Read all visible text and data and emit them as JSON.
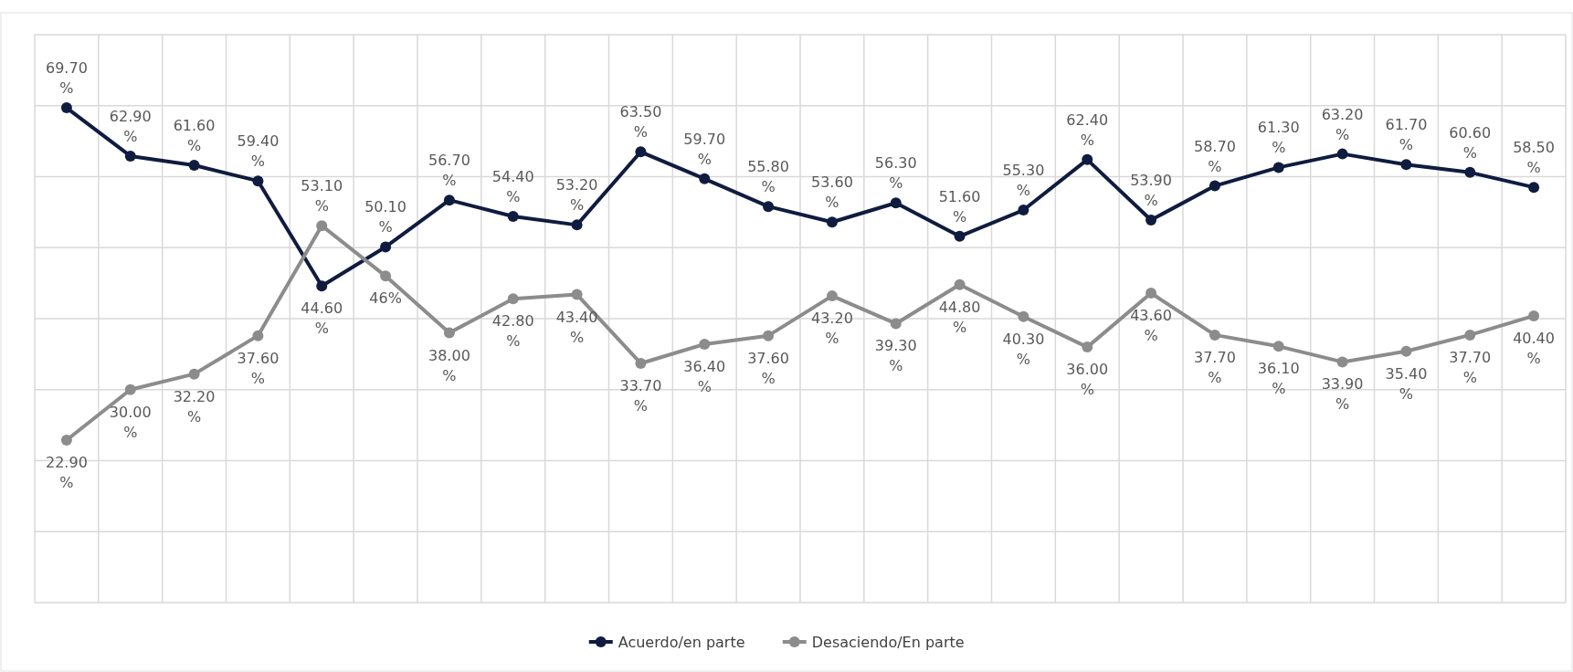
{
  "chart_data": {
    "type": "line",
    "categories": [
      null,
      null,
      null,
      null,
      null,
      null,
      null,
      null,
      null,
      null,
      null,
      null,
      null,
      null,
      null,
      null,
      null,
      null,
      null,
      null,
      null,
      null,
      null,
      null
    ],
    "series": [
      {
        "name": "Acuerdo/en parte",
        "color": "#0f1c3f",
        "values": [
          69.7,
          62.9,
          61.6,
          59.4,
          44.6,
          50.1,
          56.7,
          54.4,
          53.2,
          63.5,
          59.7,
          55.8,
          53.6,
          56.3,
          51.6,
          55.3,
          62.4,
          53.9,
          58.7,
          61.3,
          63.2,
          61.7,
          60.6,
          58.5
        ],
        "value_labels": [
          "69.70 %",
          "62.90 %",
          "61.60 %",
          "59.40 %",
          "44.60 %",
          "50.10 %",
          "56.70 %",
          "54.40 %",
          "53.20 %",
          "63.50 %",
          "59.70 %",
          "55.80 %",
          "53.60 %",
          "56.30 %",
          "51.60 %",
          "55.30 %",
          "62.40 %",
          "53.90 %",
          "58.70 %",
          "61.30 %",
          "63.20 %",
          "61.70 %",
          "60.60 %",
          "58.50 %"
        ]
      },
      {
        "name": "Desaciendo/En parte",
        "color": "#8c8c8c",
        "values": [
          22.9,
          30.0,
          32.2,
          37.6,
          53.1,
          46,
          38.0,
          42.8,
          43.4,
          33.7,
          36.4,
          37.6,
          43.2,
          39.3,
          44.8,
          40.3,
          36.0,
          43.6,
          37.7,
          36.1,
          33.9,
          35.4,
          37.7,
          40.4
        ],
        "value_labels": [
          "22.90 %",
          "30.00 %",
          "32.20 %",
          "37.60 %",
          "53.10 %",
          "46%",
          "38.00 %",
          "42.80 %",
          "43.40 %",
          "33.70 %",
          "36.40 %",
          "37.60 %",
          "43.20 %",
          "39.30 %",
          "44.80 %",
          "40.30 %",
          "36.00 %",
          "43.60 %",
          "37.70 %",
          "36.10 %",
          "33.90 %",
          "35.40 %",
          "37.70 %",
          "40.40 %"
        ]
      }
    ],
    "ylim": [
      0,
      80
    ],
    "yticks": [
      {
        "value": 0,
        "label": null
      },
      {
        "value": 10,
        "label": null
      },
      {
        "value": 20,
        "label": null
      },
      {
        "value": 30,
        "label": null
      },
      {
        "value": 40,
        "label": null
      },
      {
        "value": 50,
        "label": null
      },
      {
        "value": 60,
        "label": null
      },
      {
        "value": 70,
        "label": null
      },
      {
        "value": 80,
        "label": null
      }
    ],
    "grid": true,
    "legend": "bottom",
    "marker": "circle",
    "line_style": "solid"
  }
}
